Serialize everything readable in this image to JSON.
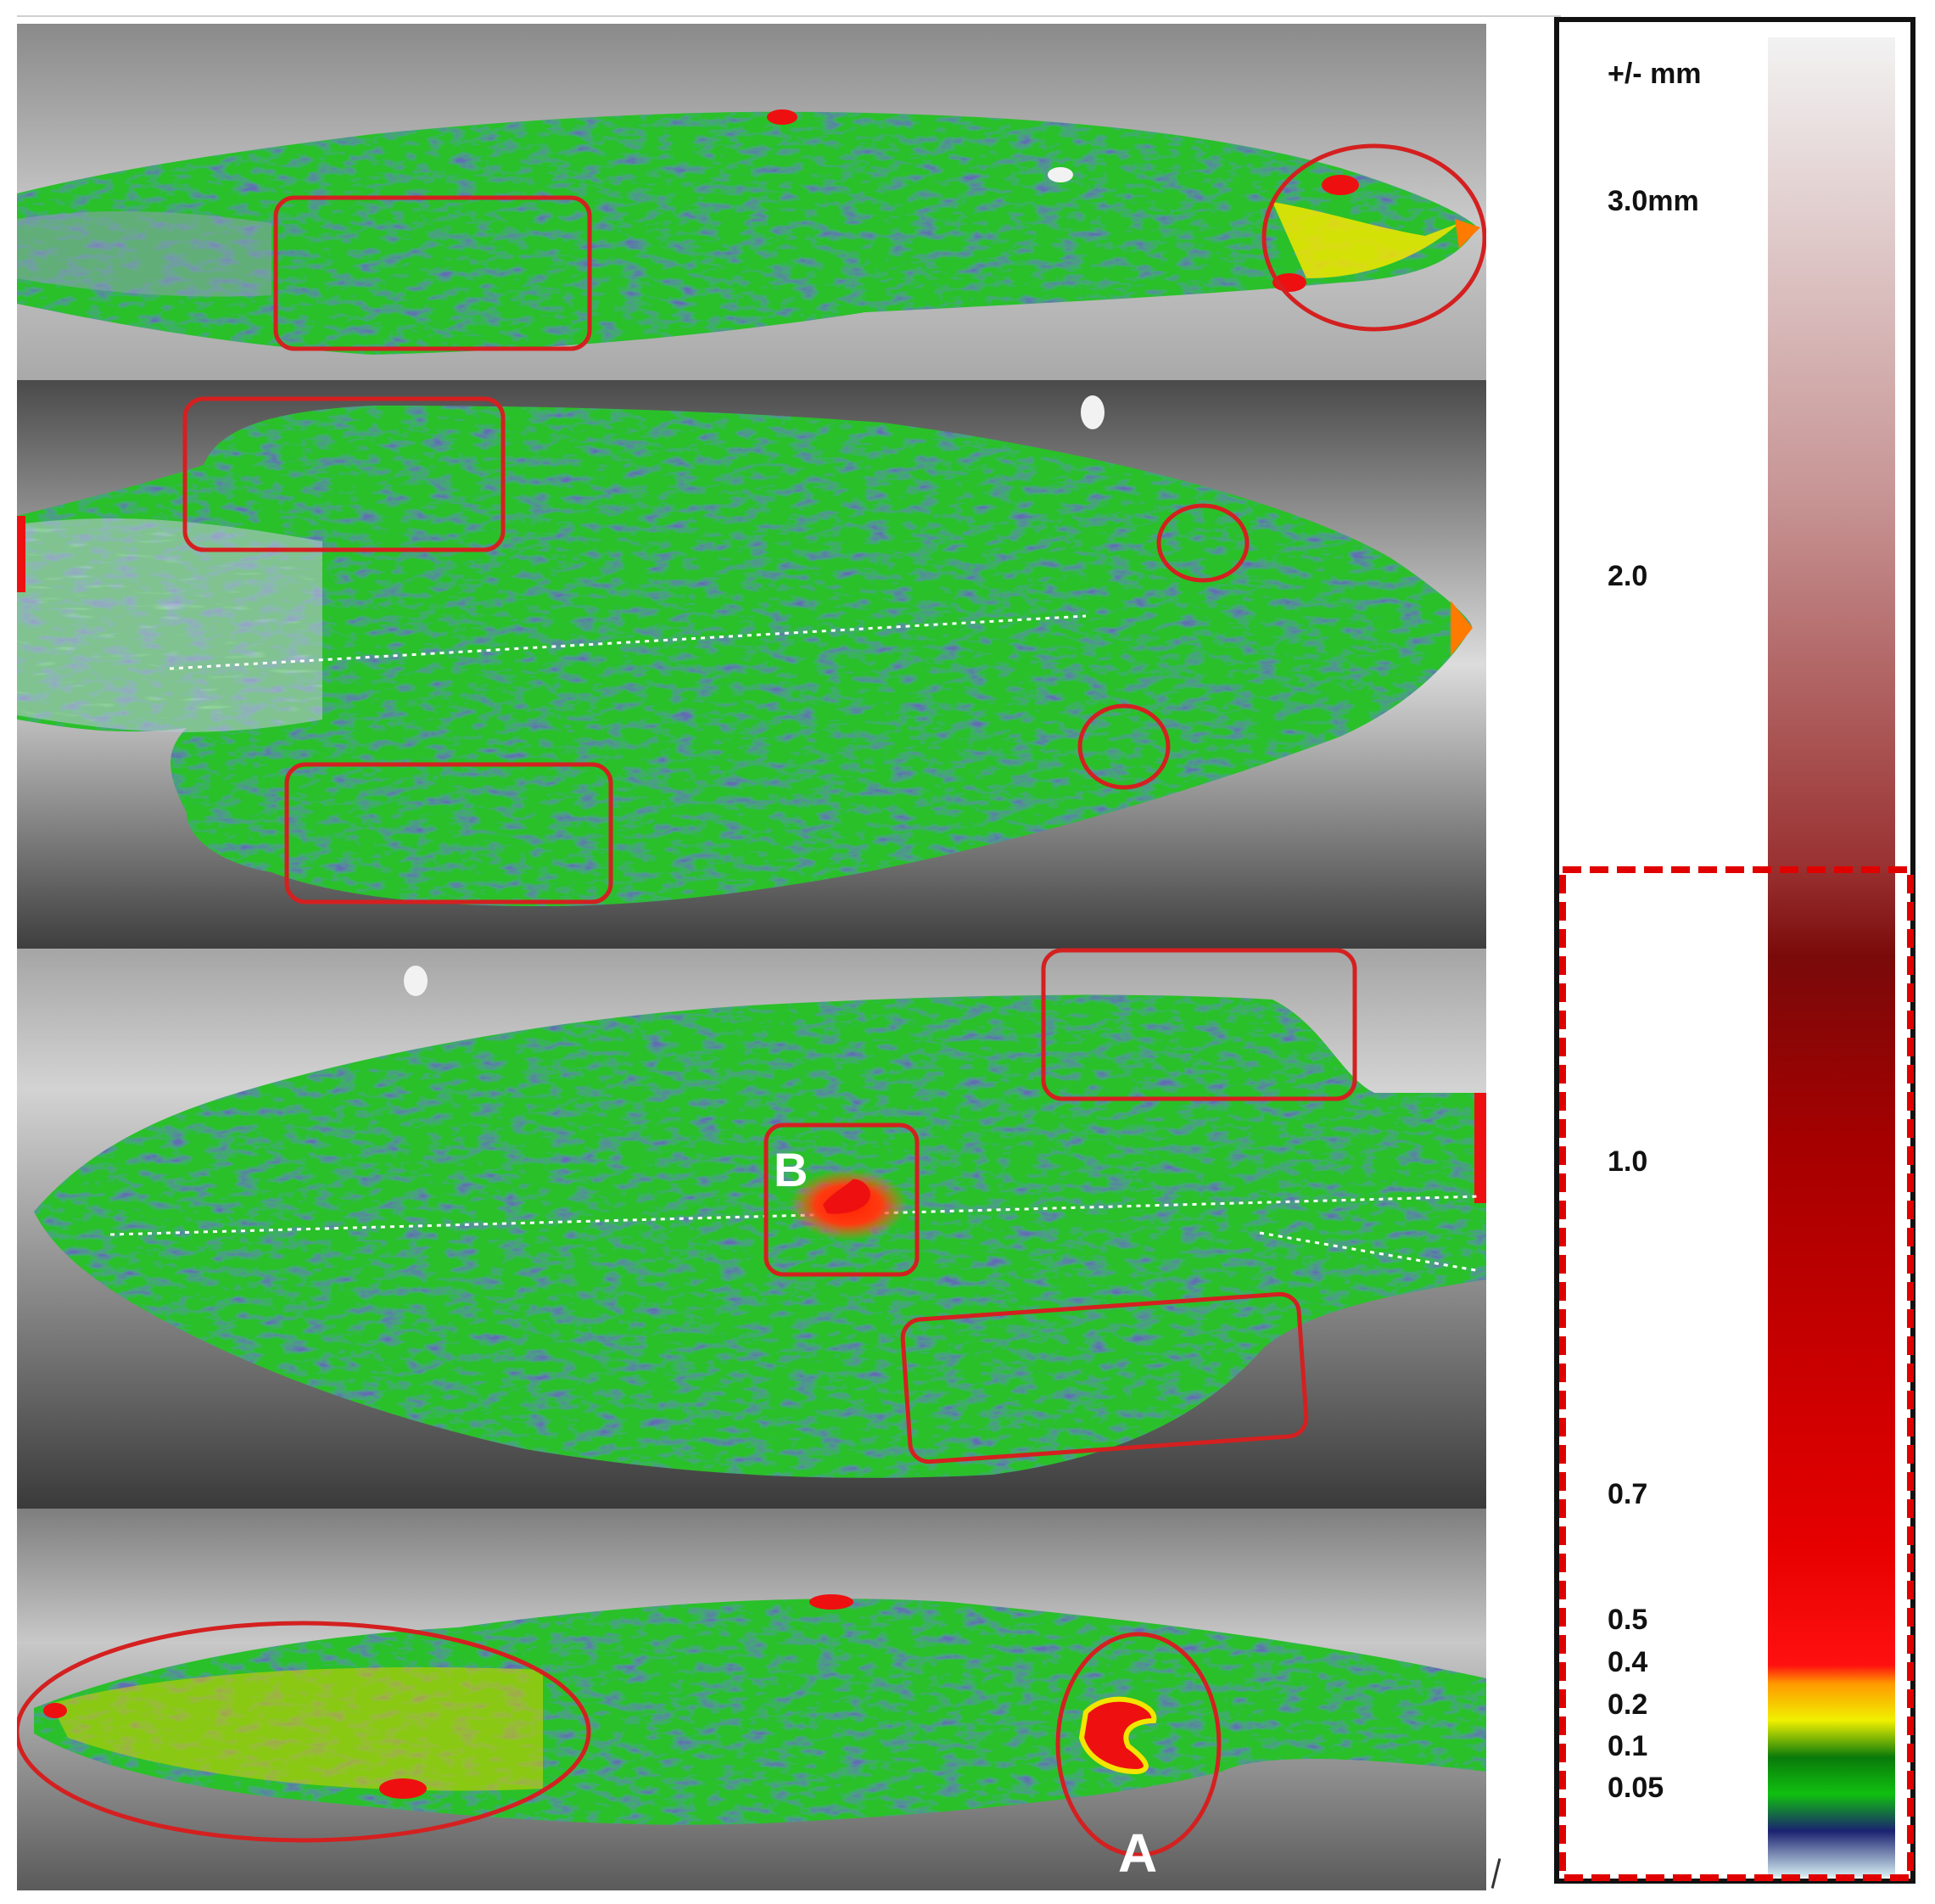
{
  "legend": {
    "unit": "+/- mm",
    "ticks": [
      {
        "label": "3.0mm",
        "value": 3.0
      },
      {
        "label": "2.0",
        "value": 2.0
      },
      {
        "label": "1.0",
        "value": 1.0
      },
      {
        "label": "0.7",
        "value": 0.7
      },
      {
        "label": "0.5",
        "value": 0.5
      },
      {
        "label": "0.4",
        "value": 0.4
      },
      {
        "label": "0.2",
        "value": 0.2
      },
      {
        "label": "0.1",
        "value": 0.1
      },
      {
        "label": "0.05",
        "value": 0.05
      }
    ],
    "colors": {
      "max": "#f2f2f2",
      "mid": "#8f1818",
      "high_red": "#c40000",
      "red": "#ff1010",
      "orange": "#ff9a00",
      "yellow": "#f0f000",
      "green": "#0fa00f",
      "navy": "#1a2270",
      "min": "#cfe8ee"
    }
  },
  "markers": {
    "a": "A",
    "b": "B"
  },
  "colors": {
    "annotation": "#d42020",
    "scan_green": "#2cc02c",
    "scan_dark_green": "#168a16",
    "scan_blue": "#2a3276",
    "scan_highlight": "#c9d6e6",
    "deviation_red": "#ee1010",
    "deviation_yellow": "#f2e600"
  }
}
